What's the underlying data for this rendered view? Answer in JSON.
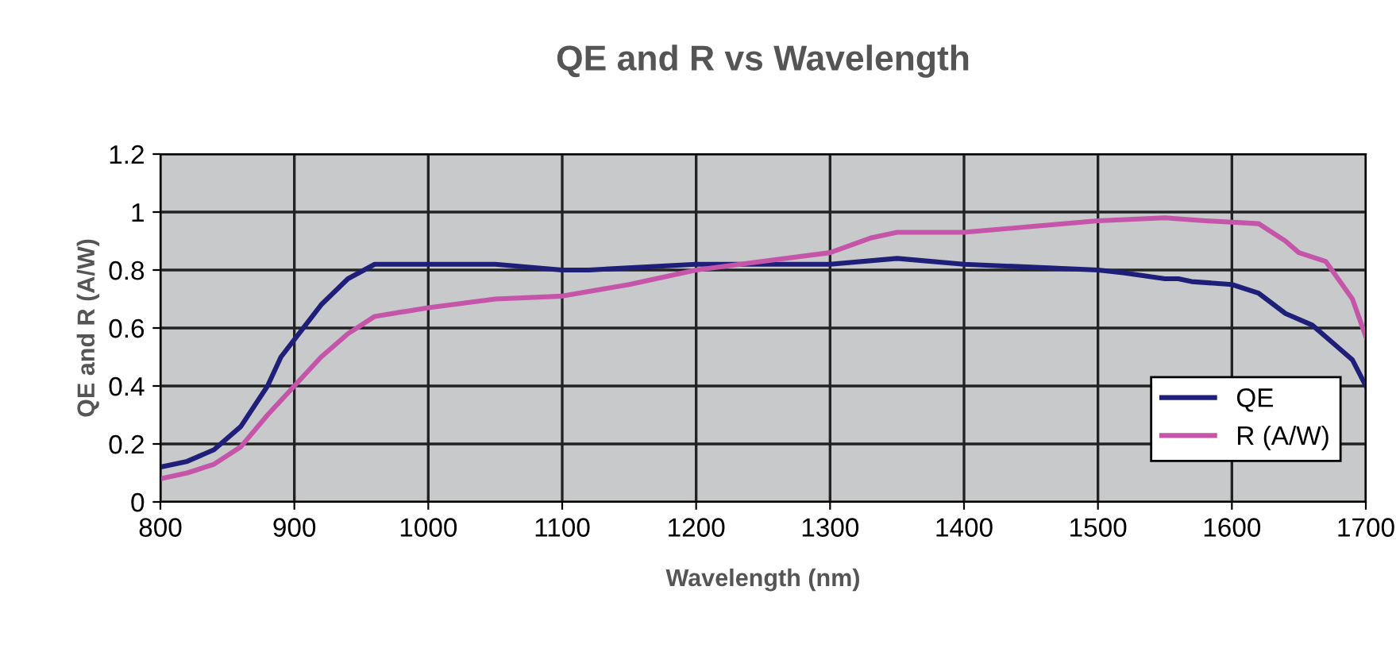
{
  "chart_data": {
    "type": "line",
    "title": "QE and R vs Wavelength",
    "xlabel": "Wavelength (nm)",
    "ylabel": "QE and R (A/W)",
    "xlim": [
      800,
      1700
    ],
    "xticks": [
      800,
      900,
      1000,
      1100,
      1200,
      1300,
      1400,
      1500,
      1600,
      1700
    ],
    "ylim": [
      0,
      1.2
    ],
    "yticks": [
      0,
      0.2,
      0.4,
      0.6,
      0.8,
      1,
      1.2
    ],
    "grid": true,
    "legend": "bottom right",
    "marker": "none",
    "line_style": "solid",
    "series": [
      {
        "name": "QE",
        "color": "#1f1f7a",
        "x": [
          800,
          820,
          840,
          860,
          880,
          890,
          900,
          920,
          940,
          960,
          1050,
          1100,
          1120,
          1200,
          1300,
          1350,
          1400,
          1450,
          1500,
          1520,
          1550,
          1560,
          1570,
          1600,
          1620,
          1640,
          1660,
          1680,
          1690,
          1700
        ],
        "values": [
          0.12,
          0.14,
          0.18,
          0.26,
          0.4,
          0.5,
          0.56,
          0.68,
          0.77,
          0.82,
          0.82,
          0.8,
          0.8,
          0.82,
          0.82,
          0.84,
          0.82,
          0.81,
          0.8,
          0.79,
          0.77,
          0.77,
          0.76,
          0.75,
          0.72,
          0.65,
          0.61,
          0.53,
          0.49,
          0.4
        ]
      },
      {
        "name": "R (A/W)",
        "color": "#c455a8",
        "x": [
          800,
          820,
          840,
          860,
          880,
          900,
          920,
          940,
          960,
          1000,
          1050,
          1100,
          1150,
          1200,
          1250,
          1300,
          1330,
          1350,
          1400,
          1450,
          1500,
          1550,
          1580,
          1620,
          1640,
          1650,
          1670,
          1690,
          1700
        ],
        "values": [
          0.08,
          0.1,
          0.13,
          0.19,
          0.3,
          0.4,
          0.5,
          0.58,
          0.64,
          0.67,
          0.7,
          0.71,
          0.75,
          0.8,
          0.83,
          0.86,
          0.91,
          0.93,
          0.93,
          0.95,
          0.97,
          0.98,
          0.97,
          0.96,
          0.9,
          0.86,
          0.83,
          0.7,
          0.57
        ]
      }
    ]
  }
}
